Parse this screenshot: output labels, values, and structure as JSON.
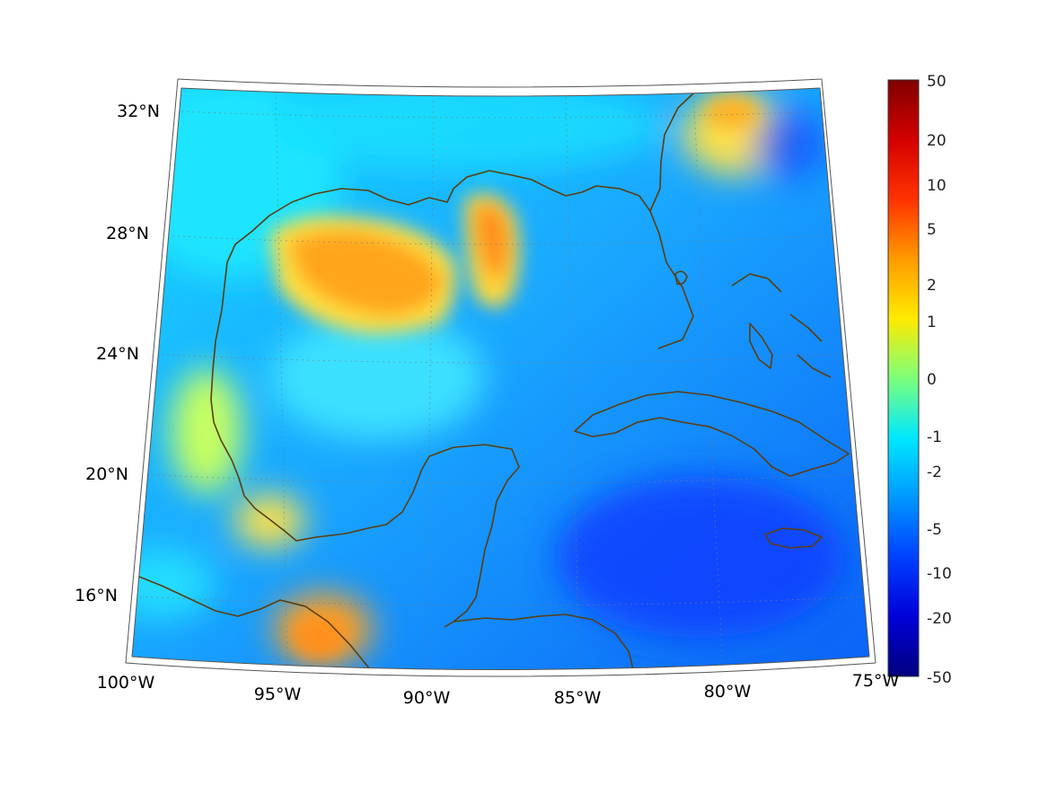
{
  "map": {
    "longitude_labels": [
      "100°W",
      "95°W",
      "90°W",
      "85°W",
      "80°W",
      "75°W"
    ],
    "latitude_labels": [
      "32°N",
      "28°N",
      "24°N",
      "20°N",
      "16°N"
    ],
    "coastline_color": "#5c3d0f",
    "background_field_color": "#0aa4ff"
  },
  "colorbar": {
    "labels": [
      "50",
      "20",
      "10",
      "5",
      "2",
      "1",
      "0",
      "-1",
      "-2",
      "-5",
      "-10",
      "-20",
      "-50"
    ],
    "colors": [
      "#800000",
      "#ff1a00",
      "#ff8c00",
      "#ffe600",
      "#a6ff55",
      "#00e5ff",
      "#0078ff",
      "#0000c8",
      "#00007f"
    ]
  }
}
